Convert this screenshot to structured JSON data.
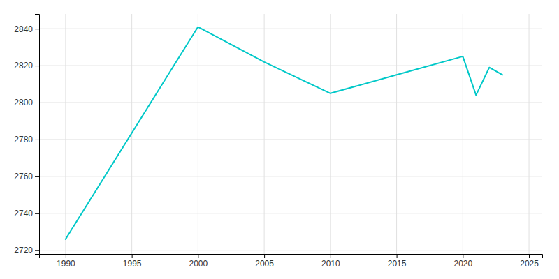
{
  "chart_data": {
    "type": "line",
    "x": [
      1990,
      2000,
      2005,
      2010,
      2015,
      2020,
      2021,
      2022,
      2023
    ],
    "values": [
      2726,
      2841,
      2822,
      2805,
      2815,
      2825,
      2804,
      2819,
      2815
    ],
    "color": "#00C8C8",
    "xlim": [
      1988,
      2026
    ],
    "ylim": [
      2718,
      2848
    ],
    "xticks": [
      1990,
      1995,
      2000,
      2005,
      2010,
      2015,
      2020,
      2025
    ],
    "yticks": [
      2720,
      2740,
      2760,
      2780,
      2800,
      2820,
      2840
    ],
    "grid": true
  }
}
